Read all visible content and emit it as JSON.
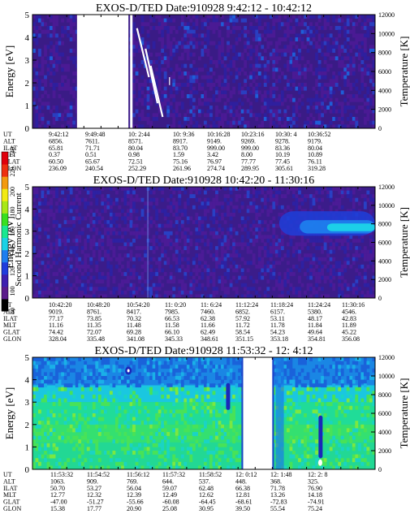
{
  "chart_data": [
    {
      "type": "heatmap",
      "title": "EXOS-D/TED   Date:910928  9:42:12 - 10:42:12",
      "ylabel": "Energy [eV]",
      "ylabel_right": "Temperature [K]",
      "ylim": [
        0,
        5
      ],
      "ylim_right": [
        0,
        12000
      ],
      "y_ticks": [
        "0",
        "1",
        "2",
        "3",
        "4",
        "5"
      ],
      "y_ticks_right": [
        "0",
        "2000",
        "4000",
        "6000",
        "8000",
        "10000",
        "12000"
      ],
      "background": "deep purple noise (power ~70-90)",
      "data_gaps": [
        {
          "from": 0.13,
          "to": 0.28
        }
      ],
      "ephemeris_labels": [
        "UT",
        "ALT",
        "ILAT",
        "MLT",
        "GLAT",
        "GLON"
      ],
      "ephemeris": [
        {
          "UT": "9:42:12",
          "ALT": "6856.",
          "ILAT": "65.81",
          "MLT": "0.37",
          "GLAT": "60.50",
          "GLON": "236.09"
        },
        {
          "UT": "9:49:48",
          "ALT": "7611.",
          "ILAT": "71.71",
          "MLT": "0.51",
          "GLAT": "65.67",
          "GLON": "240.54"
        },
        {
          "UT": "10: 2:44",
          "ALT": "8571.",
          "ILAT": "80.04",
          "MLT": "0.98",
          "GLAT": "72.51",
          "GLON": "252.29"
        },
        {
          "UT": "10: 9:36",
          "ALT": "8917.",
          "ILAT": "83.70",
          "MLT": "1.59",
          "GLAT": "75.16",
          "GLON": "261.96"
        },
        {
          "UT": "10:16:28",
          "ALT": "9149.",
          "ILAT": "999.00",
          "MLT": "3.42",
          "GLAT": "76.97",
          "GLON": "274.74"
        },
        {
          "UT": "10:23:16",
          "ALT": "9269.",
          "ILAT": "999.00",
          "MLT": "8.00",
          "GLAT": "77.77",
          "GLON": "289.95"
        },
        {
          "UT": "10:30: 4",
          "ALT": "9278.",
          "ILAT": "83.36",
          "MLT": "10.19",
          "GLAT": "77.45",
          "GLON": "305.61"
        },
        {
          "UT": "10:36:52",
          "ALT": "9179.",
          "ILAT": "80.04",
          "MLT": "10.89",
          "GLAT": "76.11",
          "GLON": "319.28"
        }
      ]
    },
    {
      "type": "heatmap",
      "title": "EXOS-D/TED   Date:910928  10:42:20 - 11:30:16",
      "ylabel": "Energy [eV]",
      "ylabel_right": "Temperature [K]",
      "ylim": [
        0,
        5
      ],
      "ylim_right": [
        0,
        12000
      ],
      "y_ticks": [
        "0",
        "1",
        "2",
        "3",
        "4",
        "5"
      ],
      "y_ticks_right": [
        "0",
        "2000",
        "4000",
        "6000",
        "8000",
        "10000",
        "12000"
      ],
      "background": "deep purple noise with blue-cyan enhancement 2-3.5 eV after 11:18",
      "ephemeris_labels": [
        "UT",
        "ALT",
        "ILAT",
        "MLT",
        "GLAT",
        "GLON"
      ],
      "ephemeris": [
        {
          "UT": "10:42:20",
          "ALT": "9019.",
          "ILAT": "77.17",
          "MLT": "11.16",
          "GLAT": "74.42",
          "GLON": "328.04"
        },
        {
          "UT": "10:48:20",
          "ALT": "8761.",
          "ILAT": "73.85",
          "MLT": "11.35",
          "GLAT": "72.07",
          "GLON": "335.48"
        },
        {
          "UT": "10:54:20",
          "ALT": "8417.",
          "ILAT": "70.32",
          "MLT": "11.48",
          "GLAT": "69.28",
          "GLON": "341.08"
        },
        {
          "UT": "11: 0:20",
          "ALT": "7985.",
          "ILAT": "66.53",
          "MLT": "11.58",
          "GLAT": "66.10",
          "GLON": "345.33"
        },
        {
          "UT": "11: 6:24",
          "ALT": "7460.",
          "ILAT": "62.38",
          "MLT": "11.66",
          "GLAT": "62.49",
          "GLON": "348.61"
        },
        {
          "UT": "11:12:24",
          "ALT": "6852.",
          "ILAT": "57.92",
          "MLT": "11.72",
          "GLAT": "58.54",
          "GLON": "351.15"
        },
        {
          "UT": "11:18:24",
          "ALT": "6157.",
          "ILAT": "53.11",
          "MLT": "11.78",
          "GLAT": "54.23",
          "GLON": "353.18"
        },
        {
          "UT": "11:24:24",
          "ALT": "5380.",
          "ILAT": "48.17",
          "MLT": "11.84",
          "GLAT": "49.64",
          "GLON": "354.81"
        },
        {
          "UT": "11:30:16",
          "ALT": "4546.",
          "ILAT": "42.83",
          "MLT": "11.89",
          "GLAT": "45.22",
          "GLON": "356.08"
        }
      ]
    },
    {
      "type": "heatmap",
      "title": "EXOS-D/TED   Date:910928  11:53:32 - 12: 4:12",
      "ylabel": "Energy [eV]",
      "ylabel_right": "Temperature [K]",
      "ylim": [
        0,
        5
      ],
      "ylim_right": [
        0,
        12000
      ],
      "y_ticks": [
        "0",
        "1",
        "2",
        "3",
        "4",
        "5"
      ],
      "y_ticks_right": [
        "0",
        "2000",
        "4000",
        "6000",
        "8000",
        "10000",
        "12000"
      ],
      "background": "green-cyan high power, blue at top energies",
      "data_gaps": [
        {
          "from": 0.615,
          "to": 0.7
        }
      ],
      "ephemeris_labels": [
        "UT",
        "ALT",
        "ILAT",
        "MLT",
        "GLAT",
        "GLON"
      ],
      "ephemeris": [
        {
          "UT": "11:53:32",
          "ALT": "1063.",
          "ILAT": "50.70",
          "MLT": "12.77",
          "GLAT": "-47.00",
          "GLON": "15.38"
        },
        {
          "UT": "11:54:52",
          "ALT": "909.",
          "ILAT": "53.27",
          "MLT": "12.32",
          "GLAT": "-51.27",
          "GLON": "17.77"
        },
        {
          "UT": "11:56:12",
          "ALT": "769.",
          "ILAT": "56.04",
          "MLT": "12.39",
          "GLAT": "-55.66",
          "GLON": "20.90"
        },
        {
          "UT": "11:57:32",
          "ALT": "644.",
          "ILAT": "59.07",
          "MLT": "12.49",
          "GLAT": "-60.08",
          "GLON": "25.08"
        },
        {
          "UT": "11:58:52",
          "ALT": "537.",
          "ILAT": "62.48",
          "MLT": "12.62",
          "GLAT": "-64.45",
          "GLON": "30.95"
        },
        {
          "UT": "12: 0:12",
          "ALT": "448.",
          "ILAT": "66.38",
          "MLT": "12.81",
          "GLAT": "-68.61",
          "GLON": "39.50"
        },
        {
          "UT": "12: 1:48",
          "ALT": "368.",
          "ILAT": "71.78",
          "MLT": "13.26",
          "GLAT": "-72.83",
          "GLON": "55.54"
        },
        {
          "UT": "12: 2: 8",
          "ALT": "325.",
          "ILAT": "76.90",
          "MLT": "14.18",
          "GLAT": "-74.91",
          "GLON": "75.24"
        }
      ]
    }
  ],
  "colorbar": {
    "label": "Second Harmonic Current",
    "ticks": [
      "80",
      "100",
      "120",
      "140",
      "160",
      "180",
      "200",
      "220",
      "240"
    ],
    "colors": [
      "#000000",
      "#5a1a8c",
      "#3d1fb0",
      "#1f3cdd",
      "#1e7ef0",
      "#1ad2e6",
      "#18e890",
      "#38e020",
      "#a8e818",
      "#f2ea12",
      "#f39a10",
      "#ee3010",
      "#e0000c"
    ]
  }
}
